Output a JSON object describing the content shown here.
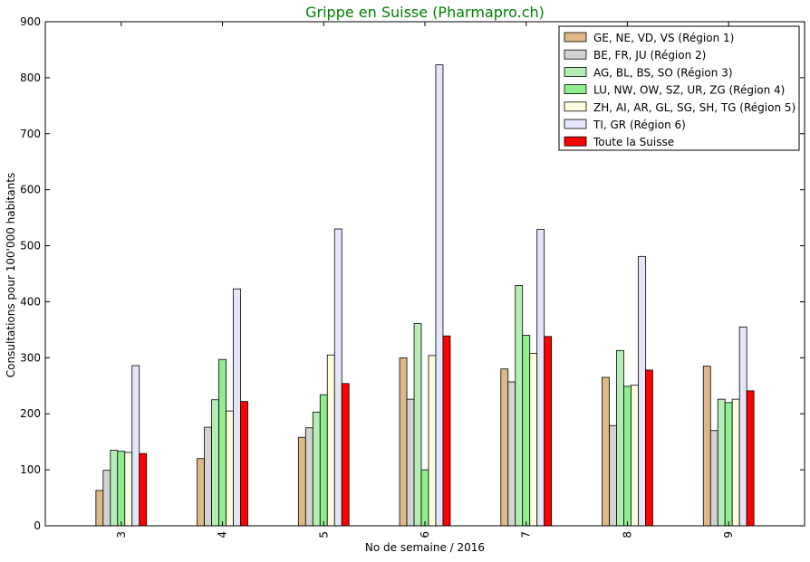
{
  "chart_data": {
    "type": "bar",
    "title": "Grippe en Suisse (Pharmapro.ch)",
    "title_color": "#008000",
    "xlabel": "No de semaine / 2016",
    "ylabel": "Consultations pour 100'000 habitants",
    "ylim": [
      0,
      900
    ],
    "yticks": [
      "0",
      "100",
      "200",
      "300",
      "400",
      "500",
      "600",
      "700",
      "800",
      "900"
    ],
    "categories": [
      "3",
      "4",
      "5",
      "6",
      "7",
      "8",
      "9"
    ],
    "grid": false,
    "legend_position": "top-right",
    "series": [
      {
        "name": "GE, NE, VD, VS (Région 1)",
        "color": "#deb887",
        "values": [
          63,
          120,
          158,
          300,
          280,
          265,
          285
        ]
      },
      {
        "name": "BE, FR, JU (Région 2)",
        "color": "#d3d3d3",
        "values": [
          99,
          176,
          175,
          226,
          257,
          179,
          170
        ]
      },
      {
        "name": "AG, BL, BS, SO (Région 3)",
        "color": "#b4eeb4",
        "values": [
          135,
          225,
          203,
          361,
          429,
          313,
          226
        ]
      },
      {
        "name": "LU, NW, OW, SZ, UR, ZG (Région 4)",
        "color": "#90ee90",
        "values": [
          133,
          297,
          234,
          100,
          340,
          249,
          220
        ]
      },
      {
        "name": "ZH, AI, AR, GL, SG, SH, TG (Région 5)",
        "color": "#ffffe0",
        "values": [
          131,
          205,
          305,
          304,
          308,
          251,
          226
        ]
      },
      {
        "name": "TI, GR (Région 6)",
        "color": "#e6e6fa",
        "values": [
          286,
          423,
          530,
          823,
          529,
          481,
          355
        ]
      },
      {
        "name": "Toute la Suisse",
        "color": "#ff0000",
        "values": [
          129,
          222,
          254,
          339,
          338,
          278,
          241
        ]
      }
    ]
  }
}
